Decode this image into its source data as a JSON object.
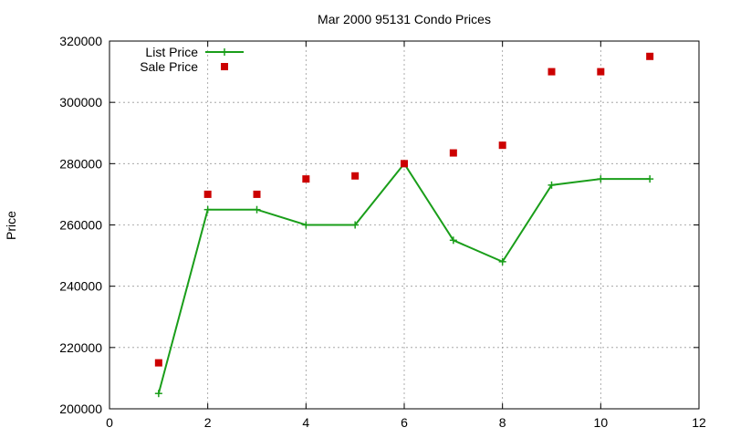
{
  "chart_data": {
    "type": "line",
    "title": "Mar 2000 95131 Condo Prices",
    "xlabel": "",
    "ylabel": "Price",
    "xlim": [
      0,
      12
    ],
    "ylim": [
      200000,
      320000
    ],
    "x_ticks": [
      "0",
      "2",
      "4",
      "6",
      "8",
      "10",
      "12"
    ],
    "y_ticks": [
      "200000",
      "220000",
      "240000",
      "260000",
      "280000",
      "300000",
      "320000"
    ],
    "grid": true,
    "legend_position": "top-left",
    "series": [
      {
        "name": "List Price",
        "style": "line-with-plus-markers",
        "color": "#1a9e1a",
        "x": [
          1,
          2,
          3,
          4,
          5,
          6,
          7,
          8,
          9,
          10,
          11
        ],
        "values": [
          205000,
          265000,
          265000,
          260000,
          260000,
          280000,
          255000,
          248000,
          273000,
          275000,
          275000
        ]
      },
      {
        "name": "Sale Price",
        "style": "square-markers",
        "color": "#cc0000",
        "x": [
          1,
          2,
          3,
          4,
          5,
          6,
          7,
          8,
          9,
          10,
          11
        ],
        "values": [
          215000,
          270000,
          270000,
          275000,
          276000,
          280000,
          283500,
          286000,
          310000,
          310000,
          315000
        ]
      }
    ]
  }
}
